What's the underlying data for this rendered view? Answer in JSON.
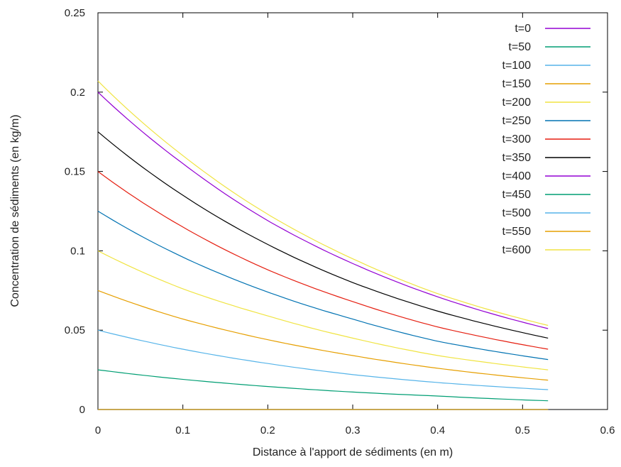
{
  "chart_data": {
    "type": "line",
    "title": "",
    "xlabel": "Distance à l'apport de sédiments (en m)",
    "ylabel": "Concentration de sédiments (en kg/m)",
    "xlim": [
      0,
      0.6
    ],
    "ylim": [
      0,
      0.25
    ],
    "xticks": [
      0,
      0.1,
      0.2,
      0.3,
      0.4,
      0.5,
      0.6
    ],
    "xtick_labels": [
      "0",
      "0.1",
      "0.2",
      "0.3",
      "0.4",
      "0.5",
      "0.6"
    ],
    "yticks": [
      0,
      0.05,
      0.1,
      0.15,
      0.2,
      0.25
    ],
    "ytick_labels": [
      "0",
      "0.05",
      "0.1",
      "0.15",
      "0.2",
      "0.25"
    ],
    "grid": false,
    "legend_position": "top-right",
    "x": [
      0,
      0.1,
      0.2,
      0.3,
      0.4,
      0.53
    ],
    "series": [
      {
        "name": "t=0",
        "color": "#9400d3",
        "values": [
          0,
          0,
          0,
          0,
          0,
          0
        ]
      },
      {
        "name": "t=50",
        "color": "#009e73",
        "values": [
          0.025,
          0.019,
          0.0145,
          0.011,
          0.0085,
          0.0055
        ]
      },
      {
        "name": "t=100",
        "color": "#56b4e9",
        "values": [
          0.05,
          0.038,
          0.029,
          0.022,
          0.017,
          0.0125
        ]
      },
      {
        "name": "t=150",
        "color": "#e69f00",
        "values": [
          0.075,
          0.057,
          0.044,
          0.034,
          0.026,
          0.0185
        ]
      },
      {
        "name": "t=200",
        "color": "#f0e442",
        "values": [
          0.1,
          0.076,
          0.059,
          0.045,
          0.034,
          0.025
        ]
      },
      {
        "name": "t=250",
        "color": "#0072b2",
        "values": [
          0.125,
          0.096,
          0.074,
          0.057,
          0.043,
          0.0315
        ]
      },
      {
        "name": "t=300",
        "color": "#e51e10",
        "values": [
          0.15,
          0.115,
          0.088,
          0.068,
          0.052,
          0.038
        ]
      },
      {
        "name": "t=350",
        "color": "#000000",
        "values": [
          0.175,
          0.135,
          0.104,
          0.08,
          0.062,
          0.045
        ]
      },
      {
        "name": "t=400",
        "color": "#9400d3",
        "values": [
          0.2,
          0.155,
          0.119,
          0.092,
          0.071,
          0.051
        ]
      },
      {
        "name": "t=450",
        "color": "#009e73",
        "values": [
          0,
          0,
          0,
          0,
          0,
          0
        ]
      },
      {
        "name": "t=500",
        "color": "#56b4e9",
        "values": [
          0,
          0,
          0,
          0,
          0,
          0
        ]
      },
      {
        "name": "t=550",
        "color": "#e69f00",
        "values": [
          0,
          0,
          0,
          0,
          0,
          0
        ]
      },
      {
        "name": "t=600",
        "color": "#f0e442",
        "values": [
          0.207,
          0.16,
          0.123,
          0.095,
          0.073,
          0.053
        ]
      }
    ]
  }
}
